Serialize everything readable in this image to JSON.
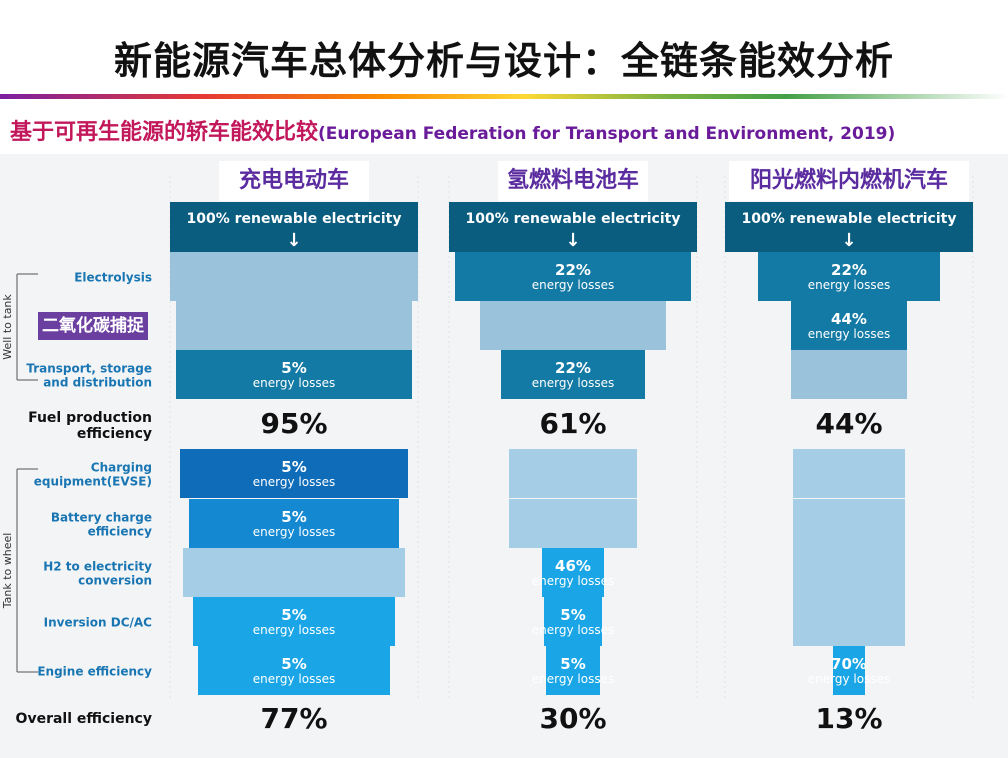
{
  "title": "新能源汽车总体分析与设计：全链条能效分析",
  "subtitle": "基于可再生能源的轿车能效比较",
  "source": "(European Federation for Transport and Environment, 2019)",
  "colors": {
    "source": "#0b5d80",
    "wtt_loss": "#137aa5",
    "wtt_pass": "#9ac2db",
    "ttw_loss_dark": "#0e6cb8",
    "ttw_loss_mid": "#1489d1",
    "ttw_loss_light": "#1aa6e6",
    "ttw_pass": "#a6cde6",
    "annotation_bg": "#6b3fa0"
  },
  "annotation": "二氧化碳捕捉",
  "chart_data": {
    "type": "table",
    "source_label": "100% renewable electricity",
    "loss_label": "energy losses",
    "group_labels": {
      "well_to_tank": "Well to tank",
      "tank_to_wheel": "Tank to wheel"
    },
    "stages": [
      {
        "key": "electrolysis",
        "label": "Electrolysis",
        "group": "well_to_tank"
      },
      {
        "key": "capture",
        "label": "",
        "group": "well_to_tank"
      },
      {
        "key": "transport",
        "label": "Transport, storage and distribution",
        "group": "well_to_tank"
      },
      {
        "key": "charging",
        "label": "Charging equipment(EVSE)",
        "group": "tank_to_wheel"
      },
      {
        "key": "battery",
        "label": "Battery charge efficiency",
        "group": "tank_to_wheel"
      },
      {
        "key": "h2e",
        "label": "H2 to electricity conversion",
        "group": "tank_to_wheel"
      },
      {
        "key": "inversion",
        "label": "Inversion DC/AC",
        "group": "tank_to_wheel"
      },
      {
        "key": "engine",
        "label": "Engine efficiency",
        "group": "tank_to_wheel"
      }
    ],
    "fuel_production_label": "Fuel production efficiency",
    "overall_label": "Overall efficiency",
    "vehicles": [
      {
        "name": "充电电动车",
        "losses": {
          "electrolysis": null,
          "capture": null,
          "transport": 5,
          "charging": 5,
          "battery": 5,
          "h2e": null,
          "inversion": 5,
          "engine": 5
        },
        "fuel_production_efficiency": 95,
        "overall_efficiency": 77
      },
      {
        "name": "氢燃料电池车",
        "losses": {
          "electrolysis": 22,
          "capture": null,
          "transport": 22,
          "charging": null,
          "battery": null,
          "h2e": 46,
          "inversion": 5,
          "engine": 5
        },
        "fuel_production_efficiency": 61,
        "overall_efficiency": 30
      },
      {
        "name": "阳光燃料内燃机汽车",
        "losses": {
          "electrolysis": 22,
          "capture": 44,
          "transport": null,
          "charging": null,
          "battery": null,
          "h2e": null,
          "inversion": null,
          "engine": 70
        },
        "fuel_production_efficiency": 44,
        "overall_efficiency": 13
      }
    ]
  }
}
